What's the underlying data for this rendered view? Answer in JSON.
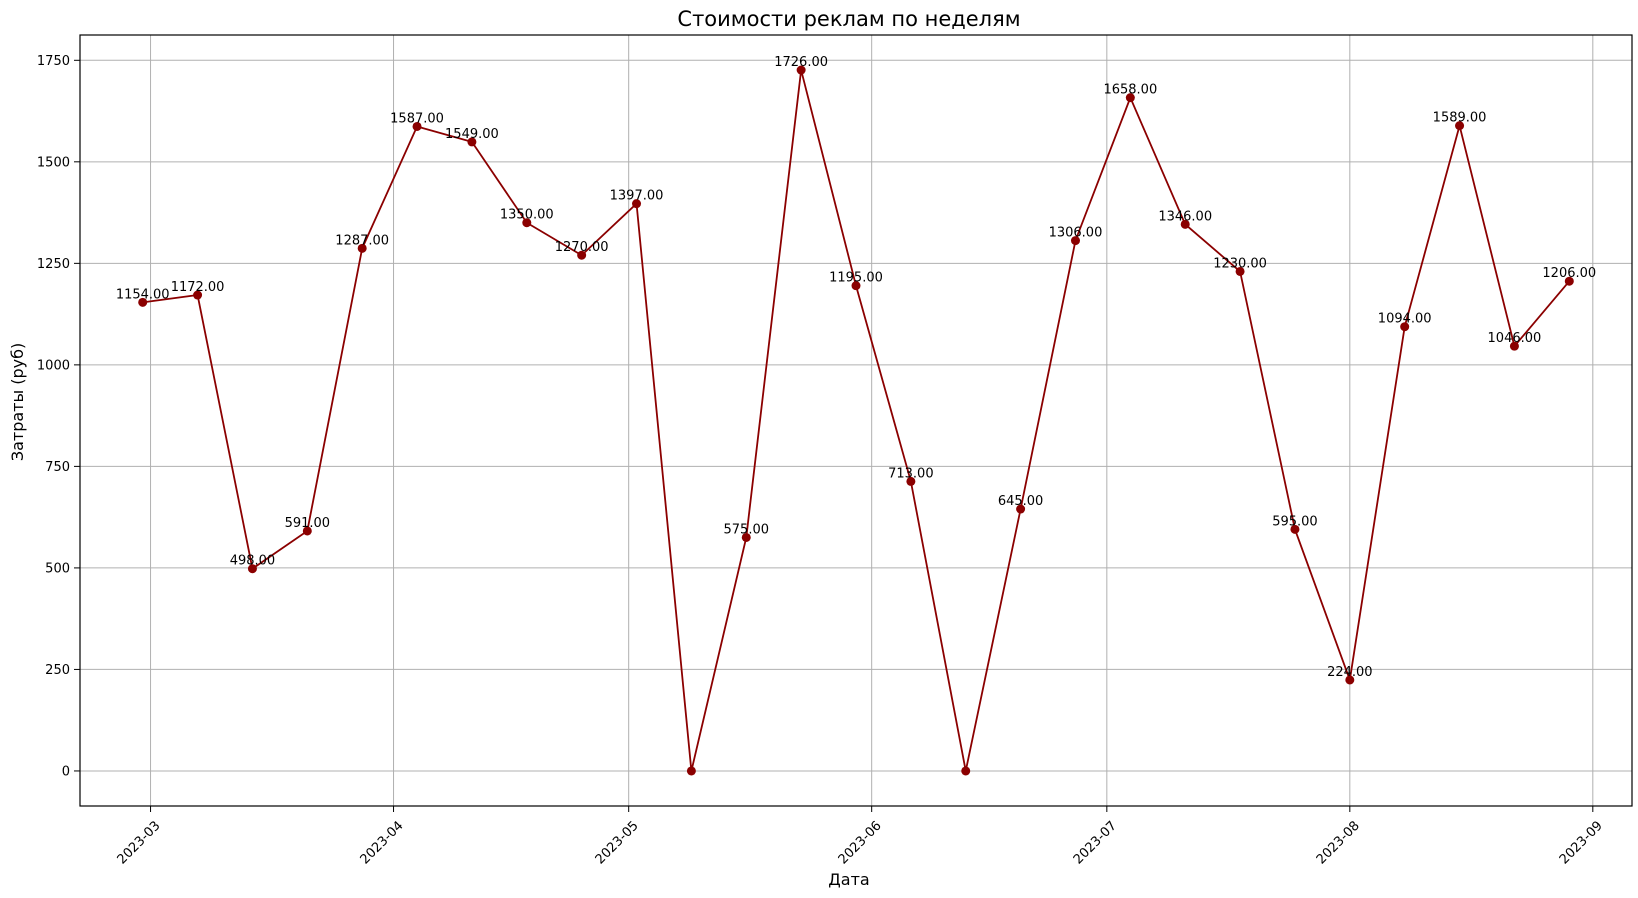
{
  "chart_data": {
    "type": "line",
    "title": "Стоимости реклам по неделям",
    "xlabel": "Дата",
    "ylabel": "Затраты (руб)",
    "grid": true,
    "color": "#8b0000",
    "x_ticks": [
      "2023-03-01",
      "2023-04-01",
      "2023-05-01",
      "2023-06-01",
      "2023-07-01",
      "2023-08-01",
      "2023-09-01"
    ],
    "x_tick_labels": [
      "2023-03",
      "2023-04",
      "2023-05",
      "2023-06",
      "2023-07",
      "2023-08",
      "2023-09"
    ],
    "xlim": [
      "2023-02-20",
      "2023-09-06"
    ],
    "y_ticks": [
      0,
      250,
      500,
      750,
      1000,
      1250,
      1500,
      1750
    ],
    "y_tick_labels": [
      "0",
      "250",
      "500",
      "750",
      "1000",
      "1250",
      "1500",
      "1750"
    ],
    "ylim": [
      -86.3,
      1812.3
    ],
    "series": [
      {
        "x": [
          "2023-02-28",
          "2023-03-07",
          "2023-03-14",
          "2023-03-21",
          "2023-03-28",
          "2023-04-04",
          "2023-04-11",
          "2023-04-18",
          "2023-04-25",
          "2023-05-02",
          "2023-05-09",
          "2023-05-16",
          "2023-05-23",
          "2023-05-30",
          "2023-06-06",
          "2023-06-13",
          "2023-06-20",
          "2023-06-27",
          "2023-07-04",
          "2023-07-11",
          "2023-07-18",
          "2023-07-25",
          "2023-08-01",
          "2023-08-08",
          "2023-08-15",
          "2023-08-22",
          "2023-08-29"
        ],
        "values": [
          1154,
          1172,
          498,
          591,
          1287,
          1587,
          1549,
          1350,
          1270,
          1397,
          0,
          575,
          1726,
          1195,
          713,
          0,
          645,
          1306,
          1658,
          1346,
          1230,
          595,
          224,
          1094,
          1589,
          1046,
          1206
        ],
        "labels": [
          "1154.00",
          "1172.00",
          "498.00",
          "591.00",
          "1287.00",
          "1587.00",
          "1549.00",
          "1350.00",
          "1270.00",
          "1397.00",
          "",
          "575.00",
          "1726.00",
          "1195.00",
          "713.00",
          "",
          "645.00",
          "1306.00",
          "1658.00",
          "1346.00",
          "1230.00",
          "595.00",
          "224.00",
          "1094.00",
          "1589.00",
          "1046.00",
          "1206.00"
        ]
      }
    ]
  }
}
